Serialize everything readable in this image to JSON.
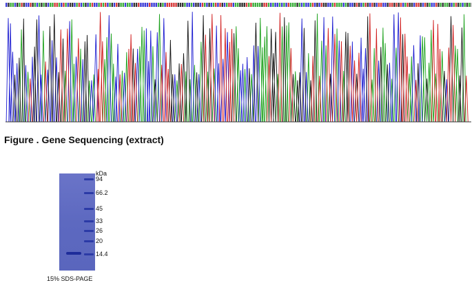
{
  "chromatogram": {
    "colors": {
      "a": "#1aa01a",
      "c": "#1a1ad0",
      "g": "#111111",
      "t": "#d01a1a"
    }
  },
  "figure_caption": "Figure . Gene Sequencing (extract)",
  "gel": {
    "unit_label": "kDa",
    "markers": [
      {
        "label": "94",
        "kda": 94
      },
      {
        "label": "66.2",
        "kda": 66.2
      },
      {
        "label": "45",
        "kda": 45
      },
      {
        "label": "33",
        "kda": 33
      },
      {
        "label": "26",
        "kda": 26
      },
      {
        "label": "20",
        "kda": 20
      },
      {
        "label": "14.4",
        "kda": 14.4
      }
    ],
    "sample_band_kda": 15,
    "caption": "15% SDS-PAGE"
  }
}
